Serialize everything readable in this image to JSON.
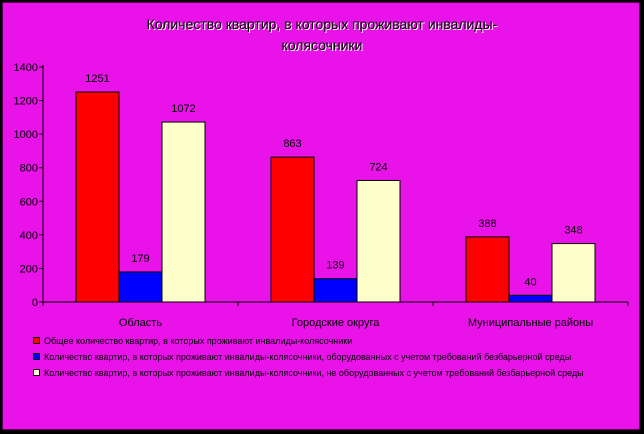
{
  "chart_data": {
    "type": "bar",
    "title": "Количество квартир, в которых проживают инвалиды-колясочники",
    "title_lines": [
      "Количество квартир, в которых проживают инвалиды-",
      "колясочники"
    ],
    "categories": [
      "Область",
      "Городские округа",
      "Муниципальные районы"
    ],
    "series": [
      {
        "name": "Общее количество квартир, в которых проживают инвалиды-колясочники",
        "color": "#ff0000",
        "values": [
          1251,
          863,
          388
        ]
      },
      {
        "name": "Количество квартир, в которых проживают инвалиды-колясочники, оборудованных с учетом требований безбарьерной среды",
        "color": "#0000ff",
        "values": [
          179,
          139,
          40
        ]
      },
      {
        "name": "Количество квартир, в которых проживают инвалиды-колясочники, не оборудованных с учетом требований безбарьерной среды",
        "color": "#ffffcc",
        "values": [
          1072,
          724,
          348
        ]
      }
    ],
    "y_ticks": [
      0,
      200,
      400,
      600,
      800,
      1000,
      1200,
      1400
    ],
    "ylim": [
      0,
      1400
    ],
    "grid": false,
    "legend_position": "bottom",
    "colors": {
      "background": "#e913e9",
      "frame": "#000000"
    }
  }
}
